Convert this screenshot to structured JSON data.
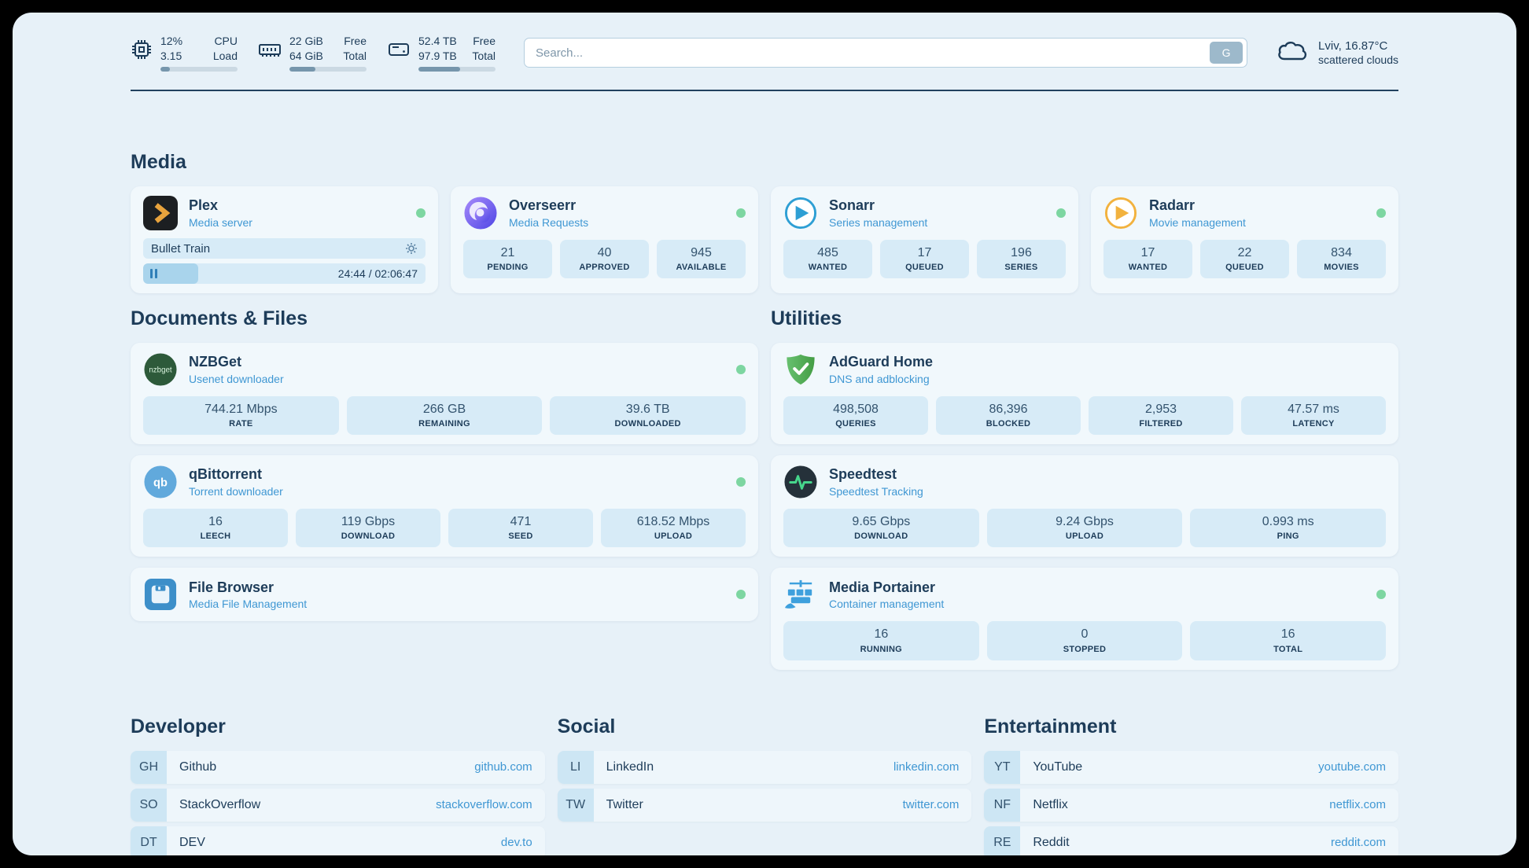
{
  "colors": {
    "accent_blue": "#3f97d3",
    "status_green": "#7dd6a1",
    "navy_text": "#1d3c59"
  },
  "topbar": {
    "cpu": {
      "value_top": "12%",
      "value_bottom": "3.15",
      "label_top": "CPU",
      "label_bottom": "Load",
      "progress_percent": 12
    },
    "memory": {
      "value_top": "22 GiB",
      "value_bottom": "64 GiB",
      "label_top": "Free",
      "label_bottom": "Total",
      "progress_percent": 34
    },
    "disk": {
      "value_top": "52.4 TB",
      "value_bottom": "97.9 TB",
      "label_top": "Free",
      "label_bottom": "Total",
      "progress_percent": 54
    },
    "search": {
      "placeholder": "Search...",
      "provider_label": "G"
    },
    "weather": {
      "location": "Lviv, 16.87°C",
      "condition": "scattered clouds"
    }
  },
  "media": {
    "title": "Media",
    "plex": {
      "name": "Plex",
      "subtitle": "Media server",
      "now_playing": "Bullet Train",
      "time": "24:44 / 02:06:47",
      "progress_percent": 19.5
    },
    "overseerr": {
      "name": "Overseerr",
      "subtitle": "Media Requests",
      "stats": [
        {
          "value": "21",
          "label": "PENDING"
        },
        {
          "value": "40",
          "label": "APPROVED"
        },
        {
          "value": "945",
          "label": "AVAILABLE"
        }
      ]
    },
    "sonarr": {
      "name": "Sonarr",
      "subtitle": "Series management",
      "stats": [
        {
          "value": "485",
          "label": "WANTED"
        },
        {
          "value": "17",
          "label": "QUEUED"
        },
        {
          "value": "196",
          "label": "SERIES"
        }
      ]
    },
    "radarr": {
      "name": "Radarr",
      "subtitle": "Movie management",
      "stats": [
        {
          "value": "17",
          "label": "WANTED"
        },
        {
          "value": "22",
          "label": "QUEUED"
        },
        {
          "value": "834",
          "label": "MOVIES"
        }
      ]
    }
  },
  "documents": {
    "title": "Documents & Files",
    "nzbget": {
      "name": "NZBGet",
      "subtitle": "Usenet downloader",
      "stats": [
        {
          "value": "744.21 Mbps",
          "label": "RATE"
        },
        {
          "value": "266 GB",
          "label": "REMAINING"
        },
        {
          "value": "39.6 TB",
          "label": "DOWNLOADED"
        }
      ]
    },
    "qbittorrent": {
      "name": "qBittorrent",
      "subtitle": "Torrent downloader",
      "stats": [
        {
          "value": "16",
          "label": "LEECH"
        },
        {
          "value": "119 Gbps",
          "label": "DOWNLOAD"
        },
        {
          "value": "471",
          "label": "SEED"
        },
        {
          "value": "618.52 Mbps",
          "label": "UPLOAD"
        }
      ]
    },
    "filebrowser": {
      "name": "File Browser",
      "subtitle": "Media File Management"
    }
  },
  "utilities": {
    "title": "Utilities",
    "adguard": {
      "name": "AdGuard Home",
      "subtitle": "DNS and adblocking",
      "stats": [
        {
          "value": "498,508",
          "label": "QUERIES"
        },
        {
          "value": "86,396",
          "label": "BLOCKED"
        },
        {
          "value": "2,953",
          "label": "FILTERED"
        },
        {
          "value": "47.57 ms",
          "label": "LATENCY"
        }
      ]
    },
    "speedtest": {
      "name": "Speedtest",
      "subtitle": "Speedtest Tracking",
      "stats": [
        {
          "value": "9.65 Gbps",
          "label": "DOWNLOAD"
        },
        {
          "value": "9.24 Gbps",
          "label": "UPLOAD"
        },
        {
          "value": "0.993 ms",
          "label": "PING"
        }
      ]
    },
    "portainer": {
      "name": "Media Portainer",
      "subtitle": "Container management",
      "stats": [
        {
          "value": "16",
          "label": "RUNNING"
        },
        {
          "value": "0",
          "label": "STOPPED"
        },
        {
          "value": "16",
          "label": "TOTAL"
        }
      ]
    }
  },
  "icons": {
    "nzbget_text": "nzbget",
    "qbittorrent_text": "qb"
  },
  "bookmarks": {
    "developer": {
      "title": "Developer",
      "items": [
        {
          "abbr": "GH",
          "name": "Github",
          "url": "github.com"
        },
        {
          "abbr": "SO",
          "name": "StackOverflow",
          "url": "stackoverflow.com"
        },
        {
          "abbr": "DT",
          "name": "DEV",
          "url": "dev.to"
        }
      ]
    },
    "social": {
      "title": "Social",
      "items": [
        {
          "abbr": "LI",
          "name": "LinkedIn",
          "url": "linkedin.com"
        },
        {
          "abbr": "TW",
          "name": "Twitter",
          "url": "twitter.com"
        }
      ]
    },
    "entertainment": {
      "title": "Entertainment",
      "items": [
        {
          "abbr": "YT",
          "name": "YouTube",
          "url": "youtube.com"
        },
        {
          "abbr": "NF",
          "name": "Netflix",
          "url": "netflix.com"
        },
        {
          "abbr": "RE",
          "name": "Reddit",
          "url": "reddit.com"
        }
      ]
    }
  }
}
